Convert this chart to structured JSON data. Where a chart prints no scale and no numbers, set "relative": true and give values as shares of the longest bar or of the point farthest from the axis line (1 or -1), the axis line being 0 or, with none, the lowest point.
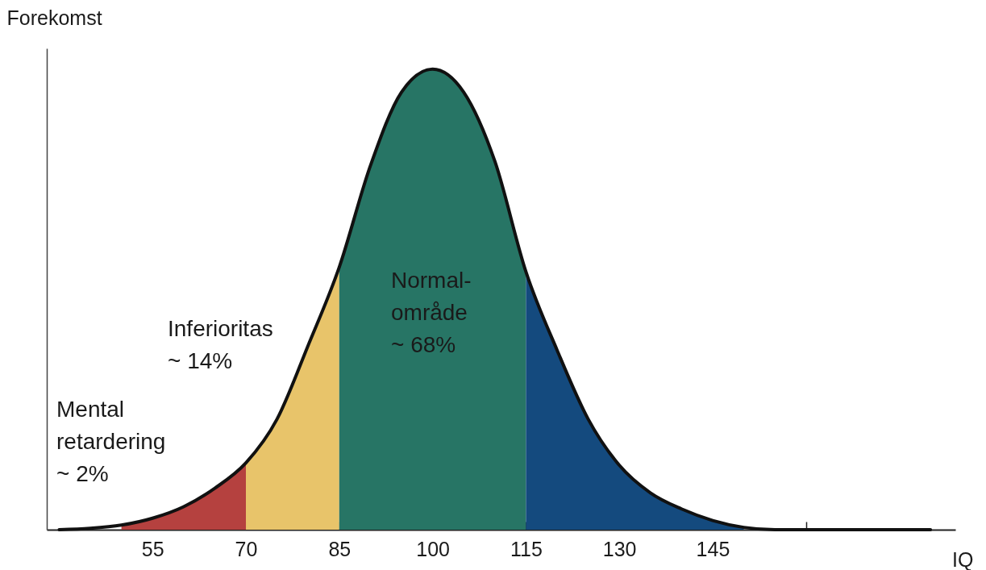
{
  "chart_data": {
    "type": "area",
    "relative": true,
    "ylabel": "Forekomst",
    "xlabel": "IQ",
    "xlim": [
      38,
      184
    ],
    "xticks": [
      55,
      70,
      85,
      100,
      115,
      130,
      145,
      {
        "value": 160,
        "label": null
      }
    ],
    "grid": false,
    "marker": "none",
    "annotations": [
      "Mental\nretardering\n~ 2%",
      "Inferioritas\n~ 14%",
      "Normal-\nområde\n~ 68%"
    ],
    "series": [
      {
        "color": "#b5413f",
        "x": [
          50,
          55,
          60,
          65,
          70
        ],
        "values": [
          0.01,
          0.025,
          0.05,
          0.09,
          0.145
        ]
      },
      {
        "color": "#e8c46a",
        "x": [
          70,
          75,
          80,
          85
        ],
        "values": [
          0.145,
          0.24,
          0.4,
          0.57
        ]
      },
      {
        "color": "#277565",
        "x": [
          85,
          90,
          95,
          100,
          105,
          110,
          115
        ],
        "values": [
          0.57,
          0.79,
          0.95,
          1,
          0.95,
          0.8,
          0.56
        ]
      },
      {
        "color": "#144a7e",
        "x": [
          115,
          120,
          125,
          130,
          135,
          140,
          145,
          150
        ],
        "values": [
          0.56,
          0.39,
          0.24,
          0.14,
          0.08,
          0.045,
          0.02,
          0.005
        ]
      },
      {
        "type": "line",
        "color": "#111111",
        "line_style": "solid",
        "x": [
          40,
          45,
          50,
          55,
          60,
          65,
          70,
          75,
          80,
          85,
          90,
          95,
          100,
          105,
          110,
          115,
          120,
          125,
          130,
          135,
          140,
          145,
          150,
          155,
          180
        ],
        "values": [
          0,
          0.003,
          0.01,
          0.025,
          0.05,
          0.09,
          0.145,
          0.24,
          0.4,
          0.57,
          0.79,
          0.95,
          1,
          0.95,
          0.8,
          0.56,
          0.39,
          0.24,
          0.14,
          0.08,
          0.045,
          0.02,
          0.005,
          0,
          0
        ]
      }
    ]
  }
}
